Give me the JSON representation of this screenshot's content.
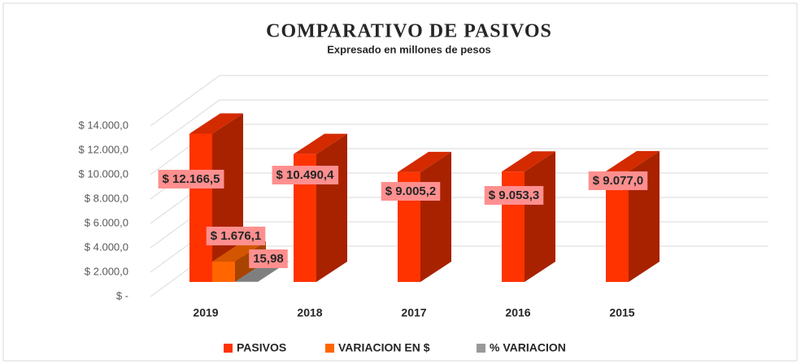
{
  "chart_data": {
    "type": "bar3d",
    "title": "COMPARATIVO DE PASIVOS",
    "subtitle": "Expresado en millones de pesos",
    "categories": [
      "2019",
      "2018",
      "2017",
      "2016",
      "2015"
    ],
    "series": [
      {
        "name": "PASIVOS",
        "color": "#ff3300",
        "values": [
          12166.5,
          10490.4,
          9005.2,
          9053.3,
          9077.0
        ],
        "value_labels": [
          "$ 12.166,5",
          "$ 10.490,4",
          "$ 9.005,2",
          "$ 9.053,3",
          "$ 9.077,0"
        ]
      },
      {
        "name": "VARIACION EN $",
        "color": "#ff6600",
        "values": [
          1676.1,
          null,
          null,
          null,
          null
        ],
        "value_labels": [
          "$ 1.676,1",
          null,
          null,
          null,
          null
        ]
      },
      {
        "name": "% VARIACION",
        "color": "#999999",
        "values": [
          15.98,
          null,
          null,
          null,
          null
        ],
        "value_labels": [
          "15,98",
          null,
          null,
          null,
          null
        ]
      }
    ],
    "ylim": [
      0,
      14000
    ],
    "yticks": [
      {
        "value": 0,
        "label": "$ -"
      },
      {
        "value": 2000,
        "label": "$ 2.000,0"
      },
      {
        "value": 4000,
        "label": "$ 4.000,0"
      },
      {
        "value": 6000,
        "label": "$ 6.000,0"
      },
      {
        "value": 8000,
        "label": "$ 8.000,0"
      },
      {
        "value": 10000,
        "label": "$ 10.000,0"
      },
      {
        "value": 12000,
        "label": "$ 12.000,0"
      },
      {
        "value": 14000,
        "label": "$ 14.000,0"
      }
    ],
    "grid": true,
    "legend": "bottom"
  }
}
